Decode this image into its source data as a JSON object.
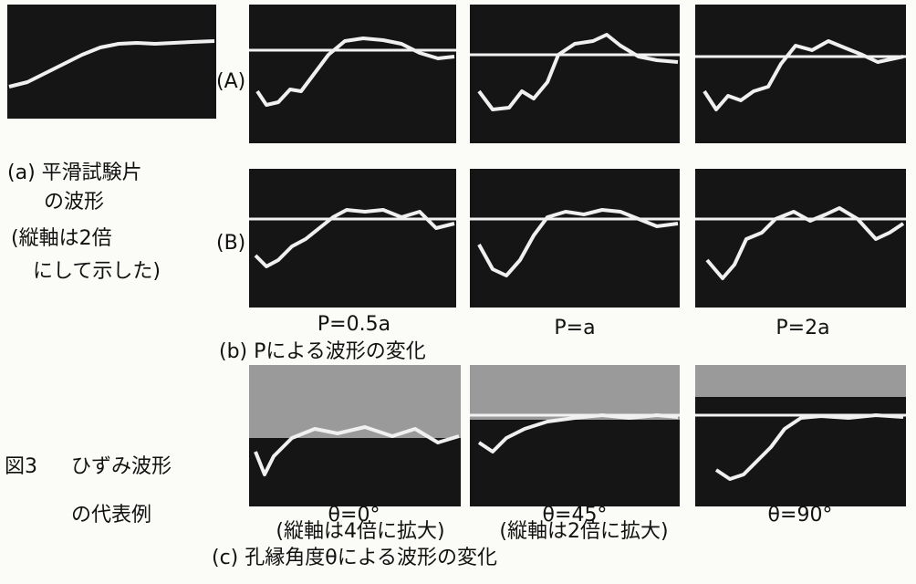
{
  "figure": {
    "number": "図3",
    "caption": [
      "ひずみ波形",
      "の代表例"
    ]
  },
  "panel_a": {
    "caption": [
      "(a) 平滑試験片",
      "の波形",
      "(縦軸は2倍",
      "にして示した)"
    ]
  },
  "panel_b": {
    "rows": [
      "(A)",
      "(B)"
    ],
    "columns": [
      "P=0.5a",
      "P=a",
      "P=2a"
    ],
    "caption": "(b) Pによる波形の変化"
  },
  "panel_c": {
    "columns": [
      {
        "angle": "θ=0°",
        "note": "(縦軸は4倍に拡大)"
      },
      {
        "angle": "θ=45°",
        "note": "(縦軸は2倍に拡大)"
      },
      {
        "angle": "θ=90°"
      }
    ],
    "caption": "(c) 孔縁角度θによる波形の変化"
  }
}
